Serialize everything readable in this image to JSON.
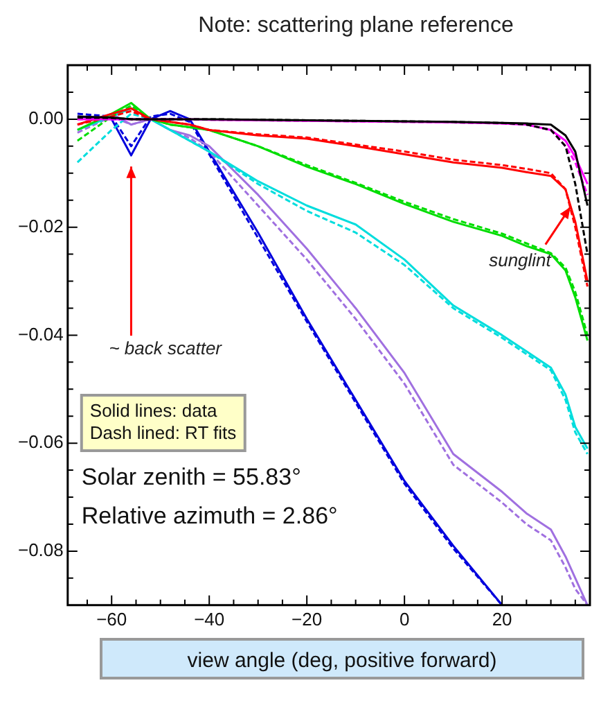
{
  "chart_data": {
    "type": "line",
    "title": "Note: scattering plane reference",
    "xlabel": "view angle (deg, positive forward)",
    "xlim": [
      -69,
      38
    ],
    "ylim": [
      -0.09,
      0.01
    ],
    "xticks": [
      {
        "value": -65,
        "label": null
      },
      -60,
      {
        "value": -55,
        "label": null
      },
      {
        "value": -50,
        "label": null
      },
      {
        "value": -45,
        "label": null
      },
      -40,
      {
        "value": -35,
        "label": null
      },
      {
        "value": -30,
        "label": null
      },
      {
        "value": -25,
        "label": null
      },
      -20,
      {
        "value": -15,
        "label": null
      },
      {
        "value": -10,
        "label": null
      },
      {
        "value": -5,
        "label": null
      },
      0,
      {
        "value": 5,
        "label": null
      },
      {
        "value": 10,
        "label": null
      },
      {
        "value": 15,
        "label": null
      },
      20,
      {
        "value": 25,
        "label": null
      },
      {
        "value": 30,
        "label": null
      },
      {
        "value": 35,
        "label": null
      }
    ],
    "yticks": [
      {
        "value": 0.005,
        "label": null
      },
      {
        "value": 0,
        "label": "0.00"
      },
      {
        "value": -0.005,
        "label": null
      },
      {
        "value": -0.01,
        "label": null
      },
      {
        "value": -0.015,
        "label": null
      },
      {
        "value": -0.02,
        "label": "−0.02"
      },
      {
        "value": -0.025,
        "label": null
      },
      {
        "value": -0.03,
        "label": null
      },
      {
        "value": -0.035,
        "label": null
      },
      {
        "value": -0.04,
        "label": "−0.04"
      },
      {
        "value": -0.045,
        "label": null
      },
      {
        "value": -0.05,
        "label": null
      },
      {
        "value": -0.055,
        "label": null
      },
      {
        "value": -0.06,
        "label": "−0.06"
      },
      {
        "value": -0.065,
        "label": null
      },
      {
        "value": -0.07,
        "label": null
      },
      {
        "value": -0.075,
        "label": null
      },
      {
        "value": -0.08,
        "label": "−0.08"
      },
      {
        "value": -0.085,
        "label": null
      }
    ],
    "grid": false,
    "legend": false,
    "marker": "none",
    "x": [
      -67,
      -60,
      -56,
      -52,
      -48,
      -44,
      -40,
      -30,
      -20,
      -10,
      0,
      10,
      20,
      25,
      30,
      33,
      35,
      37.5
    ],
    "series": [
      {
        "color": "#000000",
        "line_style": "solid",
        "values": [
          0.0005,
          0.0003,
          0,
          0,
          0,
          0,
          0,
          -0.0001,
          -0.0002,
          -0.0003,
          -0.0004,
          -0.0005,
          -0.0007,
          -0.0008,
          -0.001,
          -0.003,
          -0.006,
          -0.016
        ]
      },
      {
        "color": "#000000",
        "line_style": "dashed",
        "values": [
          0.0003,
          0.0002,
          0,
          0,
          0,
          0,
          0,
          -0.0001,
          -0.0002,
          -0.0003,
          -0.0004,
          -0.0005,
          -0.0007,
          -0.001,
          -0.002,
          -0.005,
          -0.012,
          -0.025
        ]
      },
      {
        "color": "#ff00ff",
        "line_style": "solid",
        "values": [
          0,
          0,
          0,
          0,
          0,
          0,
          -0.0001,
          -0.0002,
          -0.0003,
          -0.0004,
          -0.0005,
          -0.0006,
          -0.0008,
          -0.001,
          -0.002,
          -0.004,
          -0.007,
          -0.012
        ]
      },
      {
        "color": "#ff00ff",
        "line_style": "dashed",
        "values": [
          0,
          0,
          0,
          0,
          0,
          0,
          -0.0001,
          -0.0002,
          -0.0003,
          -0.0004,
          -0.0005,
          -0.0006,
          -0.0008,
          -0.001,
          -0.002,
          -0.005,
          -0.008,
          -0.014
        ]
      },
      {
        "color": "#ff0000",
        "line_style": "solid",
        "values": [
          -0.001,
          0.001,
          0.002,
          0,
          -0.0005,
          -0.001,
          -0.002,
          -0.003,
          -0.0036,
          -0.005,
          -0.0065,
          -0.008,
          -0.009,
          -0.0098,
          -0.0105,
          -0.013,
          -0.019,
          -0.03
        ]
      },
      {
        "color": "#ff0000",
        "line_style": "dashed",
        "values": [
          -0.001,
          0.0005,
          0.0015,
          0,
          -0.0005,
          -0.001,
          -0.002,
          -0.0028,
          -0.0034,
          -0.0047,
          -0.006,
          -0.0075,
          -0.0085,
          -0.0092,
          -0.01,
          -0.013,
          -0.02,
          -0.031
        ]
      },
      {
        "color": "#00dd00",
        "line_style": "solid",
        "values": [
          -0.002,
          0.001,
          0.003,
          0,
          -0.001,
          -0.0015,
          -0.002,
          -0.005,
          -0.0088,
          -0.012,
          -0.0157,
          -0.019,
          -0.0216,
          -0.0235,
          -0.025,
          -0.028,
          -0.033,
          -0.041
        ]
      },
      {
        "color": "#00dd00",
        "line_style": "dashed",
        "values": [
          -0.004,
          0.0005,
          0.0025,
          0,
          -0.001,
          -0.0015,
          -0.002,
          -0.005,
          -0.0085,
          -0.0118,
          -0.0153,
          -0.0185,
          -0.0212,
          -0.023,
          -0.0248,
          -0.0275,
          -0.032,
          -0.04
        ]
      },
      {
        "color": "#00dddd",
        "line_style": "solid",
        "values": [
          -0.002,
          0.0005,
          0.002,
          0,
          -0.002,
          -0.004,
          -0.006,
          -0.0115,
          -0.016,
          -0.0195,
          -0.026,
          -0.0345,
          -0.04,
          -0.043,
          -0.046,
          -0.051,
          -0.057,
          -0.061
        ]
      },
      {
        "color": "#00dddd",
        "line_style": "dashed",
        "values": [
          -0.008,
          -0.002,
          0.001,
          0,
          -0.002,
          -0.004,
          -0.006,
          -0.012,
          -0.017,
          -0.021,
          -0.027,
          -0.035,
          -0.0405,
          -0.0435,
          -0.0465,
          -0.052,
          -0.058,
          -0.062
        ]
      },
      {
        "color": "#a070e0",
        "line_style": "solid",
        "values": [
          -0.001,
          0.001,
          -0.001,
          0,
          -0.002,
          -0.003,
          -0.005,
          -0.014,
          -0.024,
          -0.035,
          -0.047,
          -0.062,
          -0.069,
          -0.073,
          -0.076,
          -0.081,
          -0.085,
          -0.09
        ]
      },
      {
        "color": "#a070e0",
        "line_style": "dashed",
        "values": [
          -0.0025,
          0.0005,
          -0.001,
          0,
          -0.002,
          -0.0035,
          -0.006,
          -0.016,
          -0.026,
          -0.037,
          -0.049,
          -0.064,
          -0.071,
          -0.075,
          -0.078,
          -0.083,
          -0.087,
          -0.09
        ]
      },
      {
        "color": "#0000dd",
        "line_style": "solid",
        "values": [
          0.0005,
          0,
          -0.0067,
          0,
          0.0015,
          0,
          -0.006,
          -0.021,
          -0.037,
          -0.052,
          -0.067,
          -0.079,
          -0.09,
          null,
          null,
          null,
          null,
          null
        ]
      },
      {
        "color": "#0000dd",
        "line_style": "dashed",
        "values": [
          0.001,
          0.0005,
          -0.005,
          0.0005,
          0.001,
          -0.0005,
          -0.0065,
          -0.022,
          -0.0375,
          -0.0525,
          -0.0675,
          -0.0795,
          -0.09,
          null,
          null,
          null,
          null,
          null
        ]
      }
    ],
    "annotations": [
      "Solid lines: data",
      "Dash lined: RT fits",
      "Solar zenith = 55.83°",
      "Relative azimuth = 2.86°",
      {
        "text": "~ back scatter",
        "x": -56,
        "y": -0.008
      },
      {
        "text": "sunglint",
        "x": 34,
        "y": -0.0155
      }
    ]
  }
}
